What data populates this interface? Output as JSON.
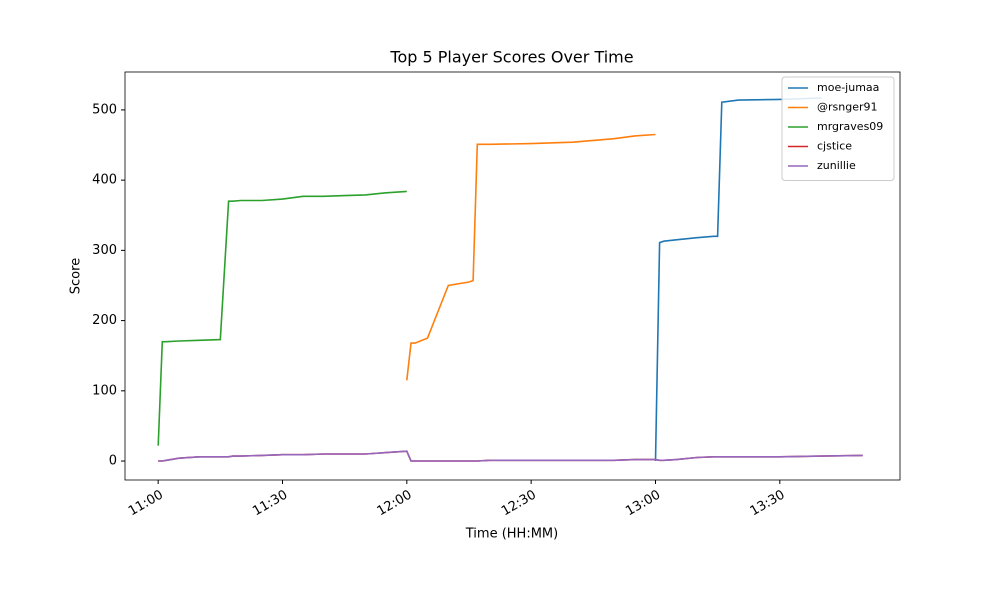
{
  "chart_data": {
    "type": "line",
    "title": "Top 5 Player Scores Over Time",
    "x_label": "Time (HH:MM)",
    "y_label": "Score",
    "x": [
      "11:00",
      "11:01",
      "11:02",
      "11:05",
      "11:10",
      "11:15",
      "11:17",
      "11:18",
      "11:20",
      "11:25",
      "11:30",
      "11:35",
      "11:40",
      "11:45",
      "11:50",
      "11:55",
      "12:00",
      "12:01",
      "12:02",
      "12:05",
      "12:08",
      "12:10",
      "12:15",
      "12:16",
      "12:17",
      "12:20",
      "12:30",
      "12:40",
      "12:50",
      "12:55",
      "13:00",
      "13:01",
      "13:02",
      "13:05",
      "13:10",
      "13:14",
      "13:15",
      "13:16",
      "13:20",
      "13:30",
      "13:40",
      "13:50"
    ],
    "series": [
      {
        "name": "moe-jumaa",
        "color": "#1f77b4",
        "values": [
          null,
          null,
          null,
          null,
          null,
          null,
          null,
          null,
          null,
          null,
          null,
          null,
          null,
          null,
          null,
          null,
          null,
          null,
          null,
          null,
          null,
          null,
          null,
          null,
          null,
          null,
          null,
          null,
          null,
          null,
          0,
          311,
          313,
          315,
          318,
          320,
          320,
          511,
          514,
          515,
          517,
          null
        ]
      },
      {
        "name": "@rsnger91",
        "color": "#ff7f0e",
        "values": [
          null,
          null,
          null,
          null,
          null,
          null,
          null,
          null,
          null,
          null,
          null,
          null,
          null,
          null,
          null,
          null,
          115,
          168,
          168,
          175,
          220,
          250,
          255,
          257,
          451,
          451,
          452,
          454,
          459,
          463,
          465,
          null,
          null,
          null,
          null,
          null,
          null,
          null,
          null,
          null,
          null,
          null
        ]
      },
      {
        "name": "mrgraves09",
        "color": "#2ca02c",
        "values": [
          22,
          170,
          170,
          171,
          172,
          173,
          370,
          370,
          371,
          371,
          373,
          377,
          377,
          378,
          379,
          382,
          384,
          null,
          null,
          null,
          null,
          null,
          null,
          null,
          null,
          null,
          null,
          null,
          null,
          null,
          null,
          null,
          null,
          null,
          null,
          null,
          null,
          null,
          null,
          null,
          null,
          null
        ]
      },
      {
        "name": "cjstice",
        "color": "#d62728",
        "values": [
          0,
          0,
          1,
          4,
          6,
          6,
          6,
          7,
          7,
          8,
          9,
          9,
          10,
          10,
          10,
          12,
          14,
          0,
          0,
          0,
          0,
          0,
          0,
          0,
          0,
          1,
          1,
          1,
          1,
          2,
          2,
          1,
          1,
          2,
          5,
          6,
          6,
          6,
          6,
          6,
          7,
          8
        ]
      },
      {
        "name": "zunillie",
        "color": "#9467bd",
        "values": [
          0,
          0,
          1,
          4,
          6,
          6,
          6,
          7,
          7,
          8,
          9,
          9,
          10,
          10,
          10,
          12,
          14,
          0,
          0,
          0,
          0,
          0,
          0,
          0,
          0,
          1,
          1,
          1,
          1,
          2,
          2,
          1,
          1,
          2,
          5,
          6,
          6,
          6,
          6,
          6,
          7,
          8
        ]
      }
    ],
    "xlim": [
      "10:52",
      "13:59"
    ],
    "xticks": [
      "11:00",
      "11:30",
      "12:00",
      "12:30",
      "13:00",
      "13:30"
    ],
    "ylim": [
      -27,
      554
    ],
    "yticks": [
      0,
      100,
      200,
      300,
      400,
      500
    ],
    "legend": "upper right"
  }
}
